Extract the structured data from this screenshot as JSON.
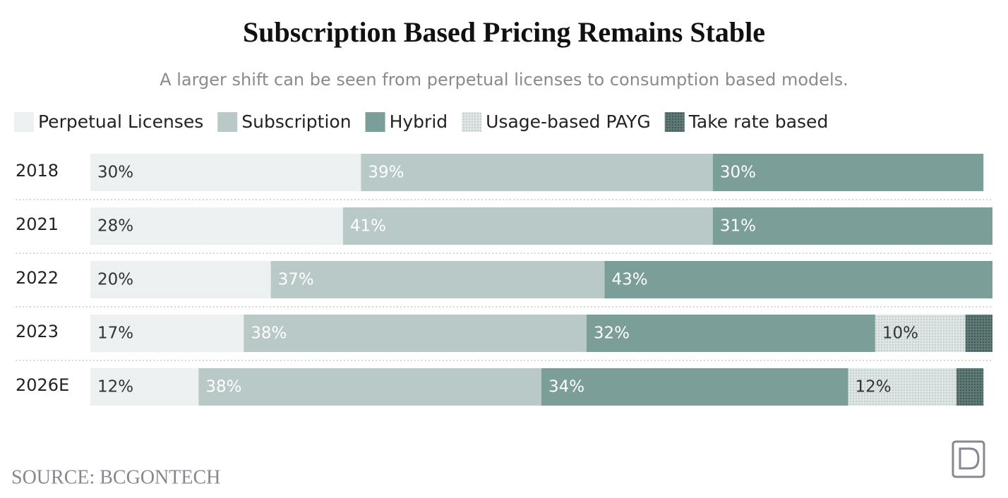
{
  "chart_data": {
    "type": "stacked-bar-horizontal",
    "title": "Subscription Based Pricing Remains Stable",
    "subtitle": "A larger shift can be seen from perpetual licenses to consumption based models.",
    "categories": [
      "2018",
      "2021",
      "2022",
      "2023",
      "2026E"
    ],
    "xlim": [
      0,
      100
    ],
    "series": [
      {
        "name": "Perpetual Licenses",
        "color": "#eef1f1",
        "values": [
          30,
          28,
          20,
          17,
          12
        ],
        "value_labels": [
          "30%",
          "28%",
          "20%",
          "17%",
          "12%"
        ]
      },
      {
        "name": "Subscription",
        "color": "#b8c9c7",
        "values": [
          39,
          41,
          37,
          38,
          38
        ],
        "value_labels": [
          "39%",
          "41%",
          "37%",
          "38%",
          "38%"
        ]
      },
      {
        "name": "Hybrid",
        "color": "#7b9e99",
        "values": [
          30,
          31,
          43,
          32,
          34
        ],
        "value_labels": [
          "30%",
          "31%",
          "43%",
          "32%",
          "34%"
        ]
      },
      {
        "name": "Usage-based PAYG",
        "color": "#dde6e4",
        "values": [
          null,
          null,
          null,
          10,
          12
        ],
        "value_labels": [
          null,
          null,
          null,
          "10%",
          "12%"
        ]
      },
      {
        "name": "Take rate based",
        "color": "#5f7a76",
        "values": [
          null,
          null,
          null,
          3,
          3
        ],
        "value_labels": [
          null,
          null,
          null,
          null,
          null
        ]
      }
    ],
    "source": "SOURCE: BCGONTECH"
  }
}
